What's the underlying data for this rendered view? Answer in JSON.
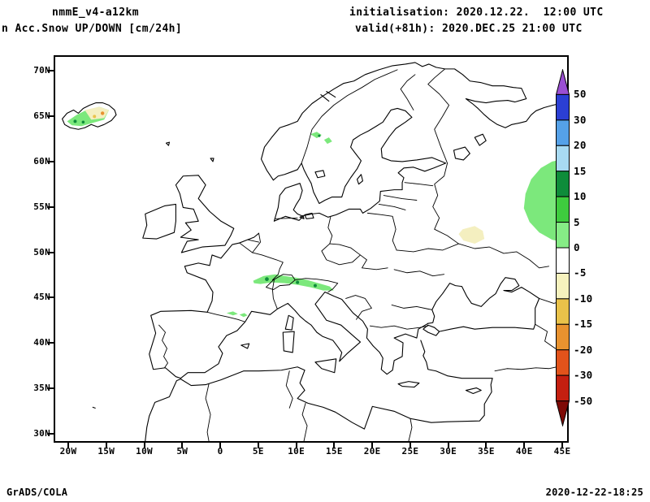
{
  "header": {
    "model": "nmmE_v4-a12km",
    "product": "n Acc.Snow UP/DOWN [cm/24h]",
    "init": "initialisation: 2020.12.22.  12:00 UTC",
    "valid": "valid(+81h): 2020.DEC.25 21:00 UTC"
  },
  "footer": {
    "left": "GrADS/COLA",
    "right": "2020-12-22-18:25"
  },
  "axes": {
    "lat_ticks": [
      "70N",
      "65N",
      "60N",
      "55N",
      "50N",
      "45N",
      "40N",
      "35N",
      "30N"
    ],
    "lon_ticks": [
      "20W",
      "15W",
      "10W",
      "5W",
      "0",
      "5E",
      "10E",
      "15E",
      "20E",
      "25E",
      "30E",
      "35E",
      "40E",
      "45E"
    ]
  },
  "colorbar": {
    "boundary_labels": [
      "50",
      "30",
      "20",
      "15",
      "10",
      "5",
      "0",
      "-5",
      "-10",
      "-15",
      "-20",
      "-30",
      "-50"
    ],
    "arrow_top_color": "#9a4fd2",
    "segment_colors": [
      "#2b3fd4",
      "#55a1e8",
      "#a8daf2",
      "#0e8c3a",
      "#3ecc3e",
      "#86ec86",
      "#ffffff",
      "#f6f2be",
      "#e9c24a",
      "#e8922f",
      "#e2531b",
      "#c41f10"
    ],
    "arrow_bottom_color": "#7e0a06"
  },
  "map": {
    "fills": {
      "snow_light": "#7ce87c",
      "snow_dark": "#0e8c3a",
      "melt_pale": "#f4efc0",
      "melt_gold": "#e9c24a",
      "melt_orange": "#e8922f"
    },
    "line_color": "#000000"
  }
}
